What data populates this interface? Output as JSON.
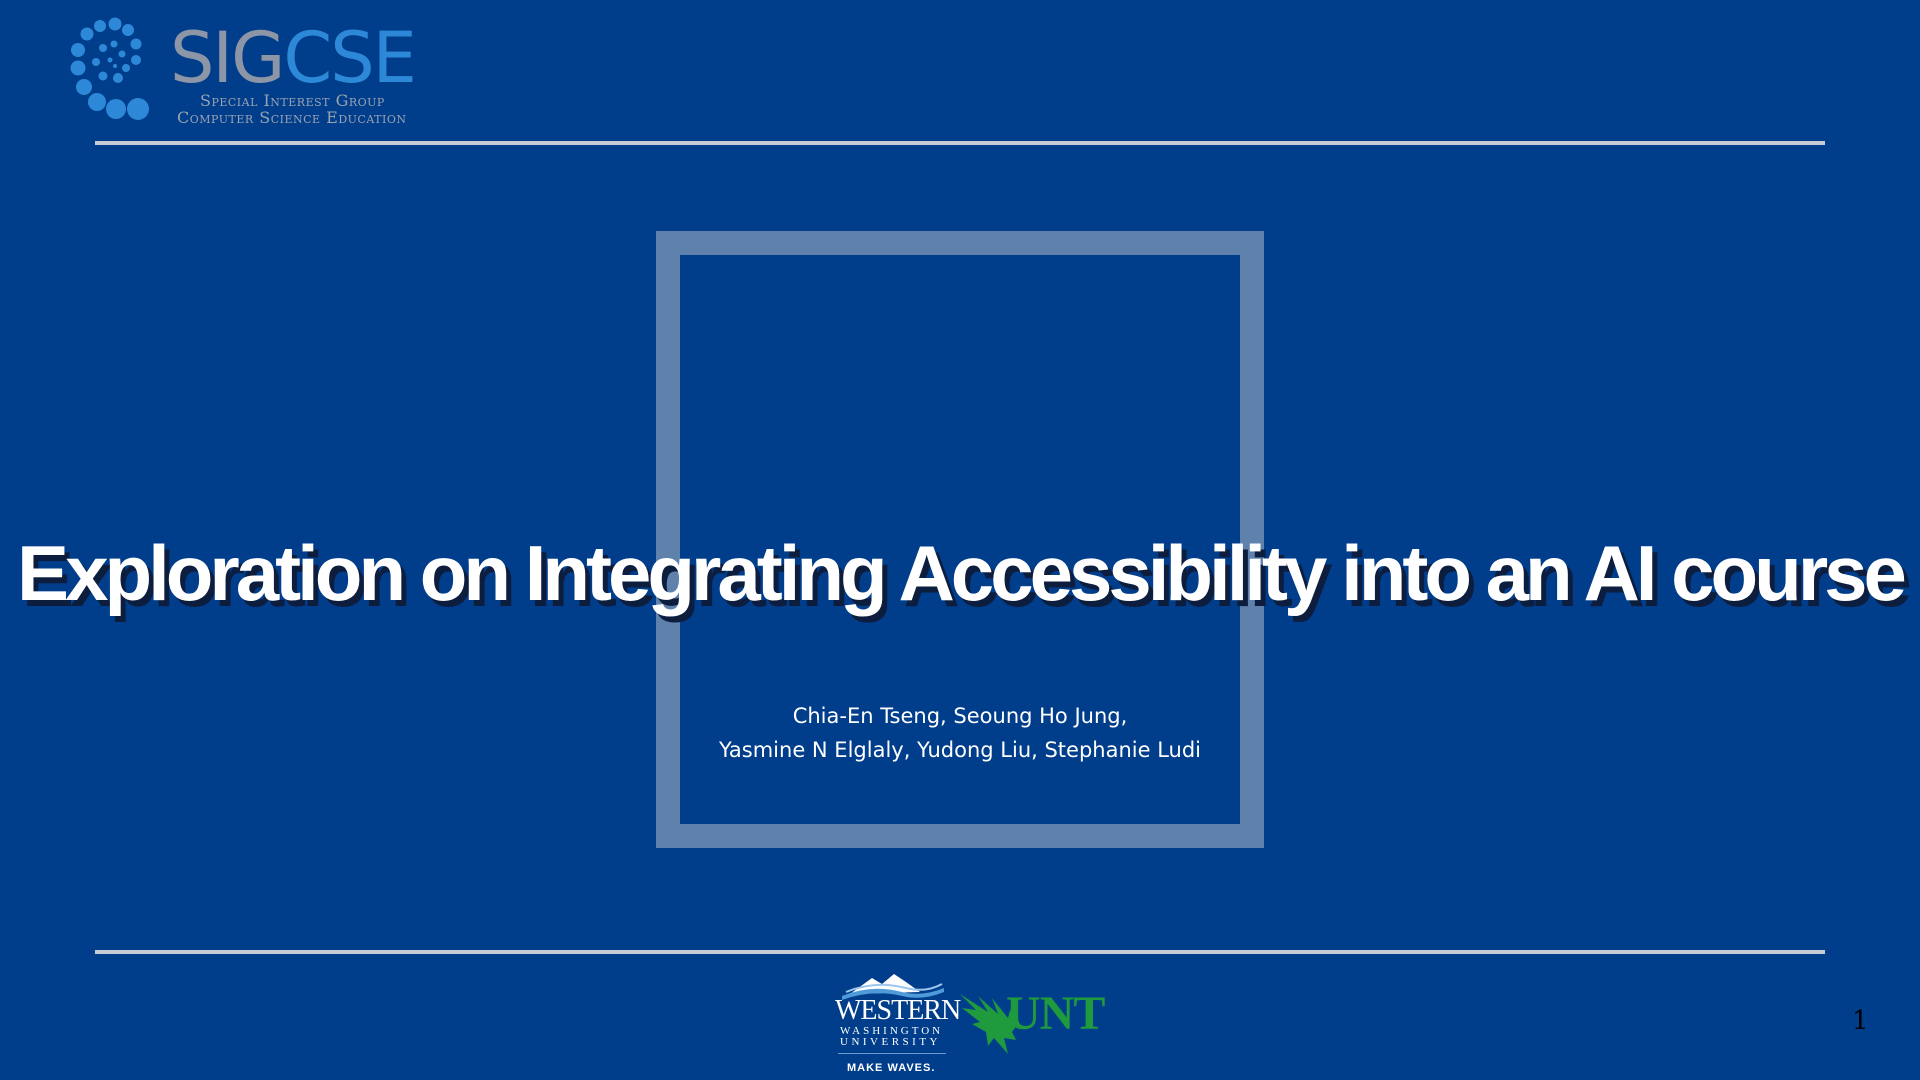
{
  "header": {
    "logo_word_part1": "SIG",
    "logo_word_part2": "CSE",
    "logo_subtitle_line1": "Special Interest Group",
    "logo_subtitle_line2": "Computer Science Education"
  },
  "slide": {
    "title": "Exploration on Integrating Accessibility into an AI course",
    "authors_line1": "Chia-En Tseng, Seoung Ho Jung,",
    "authors_line2": "Yasmine N Elglaly, Yudong Liu, Stephanie Ludi",
    "page_number": "1"
  },
  "footer": {
    "wwu_name": "WESTERN",
    "wwu_line2": "WASHINGTON",
    "wwu_line3": "UNIVERSITY",
    "wwu_tagline": "MAKE WAVES.",
    "unt_name": "UNT"
  },
  "colors": {
    "background": "#003d8b",
    "frame": "#5f82ad",
    "rule": "#c9ced6",
    "sigcse_grey": "#8d96a6",
    "sigcse_blue": "#2e88d8",
    "unt_green": "#1f9a3c"
  }
}
